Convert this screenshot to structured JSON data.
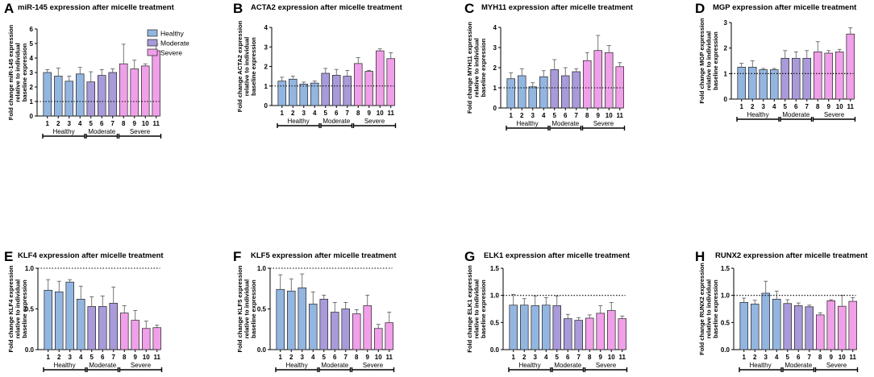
{
  "colors": {
    "Healthy": "#93b6e1",
    "Moderate": "#a99ad9",
    "Severe": "#f0a0e8",
    "stroke": "#000000",
    "error": "#555555"
  },
  "legend": {
    "items": [
      "Healthy",
      "Moderate",
      "Severe"
    ]
  },
  "chart_data": [
    {
      "type": "bar",
      "letter": "A",
      "title": "miR-145 expression after micelle treatment",
      "ylabel": [
        "Fold change miR-145 expression",
        "relative to individual",
        "baseline expression"
      ],
      "ylim": [
        0,
        6
      ],
      "yticks": [
        0,
        1,
        2,
        3,
        4,
        5,
        6
      ],
      "reference_line": 1,
      "categories": [
        "1",
        "2",
        "3",
        "4",
        "5",
        "6",
        "7",
        "8",
        "9",
        "10",
        "11"
      ],
      "groups": [
        "Healthy",
        "Healthy",
        "Healthy",
        "Healthy",
        "Moderate",
        "Moderate",
        "Moderate",
        "Severe",
        "Severe",
        "Severe",
        "Severe"
      ],
      "values": [
        3.0,
        2.75,
        2.4,
        2.9,
        2.35,
        2.8,
        3.0,
        3.6,
        3.25,
        3.45,
        4.5
      ],
      "errors": [
        0.2,
        0.55,
        0.35,
        0.45,
        0.7,
        0.4,
        0.25,
        1.35,
        0.6,
        0.15,
        0.45
      ],
      "group_labels": [
        "Healthy",
        "Moderate",
        "Severe"
      ]
    },
    {
      "type": "bar",
      "letter": "B",
      "title": "ACTA2 expression after micelle treatment",
      "ylabel": [
        "Fold change ACTA2 expression",
        "relative to individual",
        "baseline expression"
      ],
      "ylim": [
        0,
        4
      ],
      "yticks": [
        0,
        1,
        2,
        3,
        4
      ],
      "reference_line": 1,
      "categories": [
        "1",
        "2",
        "3",
        "4",
        "5",
        "6",
        "7",
        "8",
        "9",
        "10",
        "11"
      ],
      "groups": [
        "Healthy",
        "Healthy",
        "Healthy",
        "Healthy",
        "Moderate",
        "Moderate",
        "Moderate",
        "Severe",
        "Severe",
        "Severe",
        "Severe"
      ],
      "values": [
        1.25,
        1.35,
        1.1,
        1.15,
        1.65,
        1.55,
        1.5,
        2.15,
        1.75,
        2.8,
        2.4
      ],
      "errors": [
        0.2,
        0.15,
        0.1,
        0.1,
        0.25,
        0.3,
        0.3,
        0.3,
        0.05,
        0.1,
        0.3
      ],
      "group_labels": [
        "Healthy",
        "Moderate",
        "Severe"
      ]
    },
    {
      "type": "bar",
      "letter": "C",
      "title": "MYH11 expression after micelle treatment",
      "ylabel": [
        "Fold change MYH11 expression",
        "relative to individual",
        "baseline expression"
      ],
      "ylim": [
        0,
        4
      ],
      "yticks": [
        0,
        1,
        2,
        3,
        4
      ],
      "reference_line": 1,
      "categories": [
        "1",
        "2",
        "3",
        "4",
        "5",
        "6",
        "7",
        "8",
        "9",
        "10",
        "11"
      ],
      "groups": [
        "Healthy",
        "Healthy",
        "Healthy",
        "Healthy",
        "Moderate",
        "Moderate",
        "Moderate",
        "Severe",
        "Severe",
        "Severe",
        "Severe"
      ],
      "values": [
        1.45,
        1.6,
        1.05,
        1.55,
        1.9,
        1.6,
        1.8,
        2.35,
        2.85,
        2.75,
        2.05
      ],
      "errors": [
        0.3,
        0.35,
        0.2,
        0.3,
        0.5,
        0.4,
        0.15,
        0.4,
        0.75,
        0.35,
        0.2
      ],
      "group_labels": [
        "Healthy",
        "Moderate",
        "Severe"
      ]
    },
    {
      "type": "bar",
      "letter": "D",
      "title": "MGP expression after micelle treatment",
      "ylabel": [
        "Fold change MGP expression",
        "relative to individual",
        "baseline expression"
      ],
      "ylim": [
        0,
        3
      ],
      "yticks": [
        0,
        1,
        2,
        3
      ],
      "reference_line": 1,
      "categories": [
        "1",
        "2",
        "3",
        "4",
        "5",
        "6",
        "7",
        "8",
        "9",
        "10",
        "11"
      ],
      "groups": [
        "Healthy",
        "Healthy",
        "Healthy",
        "Healthy",
        "Moderate",
        "Moderate",
        "Moderate",
        "Severe",
        "Severe",
        "Severe",
        "Severe"
      ],
      "values": [
        1.25,
        1.25,
        1.15,
        1.15,
        1.6,
        1.6,
        1.6,
        1.85,
        1.8,
        1.85,
        2.55
      ],
      "errors": [
        0.15,
        0.25,
        0.05,
        0.05,
        0.3,
        0.25,
        0.3,
        0.4,
        0.1,
        0.1,
        0.25
      ],
      "group_labels": [
        "Healthy",
        "Moderate",
        "Severe"
      ]
    },
    {
      "type": "bar",
      "letter": "E",
      "title": "KLF4 expression after micelle treatment",
      "ylabel": [
        "Fold change KLF4 expression",
        "relative to individual",
        "baseline expression"
      ],
      "ylim": [
        0,
        1.0
      ],
      "yticks": [
        0.0,
        0.5,
        1.0
      ],
      "reference_line": 1,
      "categories": [
        "1",
        "2",
        "3",
        "4",
        "5",
        "6",
        "7",
        "8",
        "9",
        "10",
        "11"
      ],
      "groups": [
        "Healthy",
        "Healthy",
        "Healthy",
        "Healthy",
        "Moderate",
        "Moderate",
        "Moderate",
        "Severe",
        "Severe",
        "Severe",
        "Severe"
      ],
      "values": [
        0.73,
        0.71,
        0.83,
        0.62,
        0.53,
        0.53,
        0.57,
        0.45,
        0.36,
        0.26,
        0.27
      ],
      "errors": [
        0.13,
        0.13,
        0.03,
        0.16,
        0.12,
        0.13,
        0.2,
        0.09,
        0.12,
        0.09,
        0.03
      ],
      "group_labels": [
        "Healthy",
        "Moderate",
        "Severe"
      ]
    },
    {
      "type": "bar",
      "letter": "F",
      "title": "KLF5 expression after micelle treatment",
      "ylabel": [
        "Fold change KLF5 expression",
        "relative to individual",
        "baseline expression"
      ],
      "ylim": [
        0,
        1.0
      ],
      "yticks": [
        0.0,
        0.5,
        1.0
      ],
      "reference_line": 1,
      "categories": [
        "1",
        "2",
        "3",
        "4",
        "5",
        "6",
        "7",
        "8",
        "9",
        "10",
        "11"
      ],
      "groups": [
        "Healthy",
        "Healthy",
        "Healthy",
        "Healthy",
        "Moderate",
        "Moderate",
        "Moderate",
        "Severe",
        "Severe",
        "Severe",
        "Severe"
      ],
      "values": [
        0.74,
        0.72,
        0.76,
        0.56,
        0.62,
        0.46,
        0.5,
        0.44,
        0.54,
        0.26,
        0.33
      ],
      "errors": [
        0.18,
        0.15,
        0.17,
        0.15,
        0.05,
        0.12,
        0.08,
        0.05,
        0.13,
        0.05,
        0.13
      ],
      "group_labels": [
        "Healthy",
        "Moderate",
        "Severe"
      ]
    },
    {
      "type": "bar",
      "letter": "G",
      "title": "ELK1 expression after micelle treatment",
      "ylabel": [
        "Fold change ELK1 expression",
        "relative to individual",
        "baseline expression"
      ],
      "ylim": [
        0,
        1.5
      ],
      "yticks": [
        0.0,
        0.5,
        1.0,
        1.5
      ],
      "reference_line": 1,
      "categories": [
        "1",
        "2",
        "3",
        "4",
        "5",
        "6",
        "7",
        "8",
        "9",
        "10",
        "11"
      ],
      "groups": [
        "Healthy",
        "Healthy",
        "Healthy",
        "Healthy",
        "Moderate",
        "Moderate",
        "Moderate",
        "Severe",
        "Severe",
        "Severe",
        "Severe"
      ],
      "values": [
        0.82,
        0.82,
        0.81,
        0.82,
        0.81,
        0.57,
        0.54,
        0.58,
        0.67,
        0.72,
        0.57
      ],
      "errors": [
        0.2,
        0.12,
        0.18,
        0.14,
        0.18,
        0.08,
        0.05,
        0.06,
        0.14,
        0.15,
        0.05
      ],
      "group_labels": [
        "Healthy",
        "Moderate",
        "Severe"
      ]
    },
    {
      "type": "bar",
      "letter": "H",
      "title": "RUNX2 expression after micelle treatment",
      "ylabel": [
        "Fold change RUNX2 expression",
        "relative to individual",
        "baseline expression"
      ],
      "ylim": [
        0,
        1.5
      ],
      "yticks": [
        0.0,
        0.5,
        1.0,
        1.5
      ],
      "reference_line": 1,
      "categories": [
        "1",
        "2",
        "3",
        "4",
        "5",
        "6",
        "7",
        "8",
        "9",
        "10",
        "11"
      ],
      "groups": [
        "Healthy",
        "Healthy",
        "Healthy",
        "Healthy",
        "Moderate",
        "Moderate",
        "Moderate",
        "Severe",
        "Severe",
        "Severe",
        "Severe"
      ],
      "values": [
        0.87,
        0.84,
        1.04,
        0.93,
        0.85,
        0.81,
        0.79,
        0.64,
        0.9,
        0.8,
        0.89
      ],
      "errors": [
        0.08,
        0.07,
        0.22,
        0.15,
        0.07,
        0.05,
        0.03,
        0.04,
        0.02,
        0.2,
        0.07
      ],
      "group_labels": [
        "Healthy",
        "Moderate",
        "Severe"
      ]
    }
  ]
}
